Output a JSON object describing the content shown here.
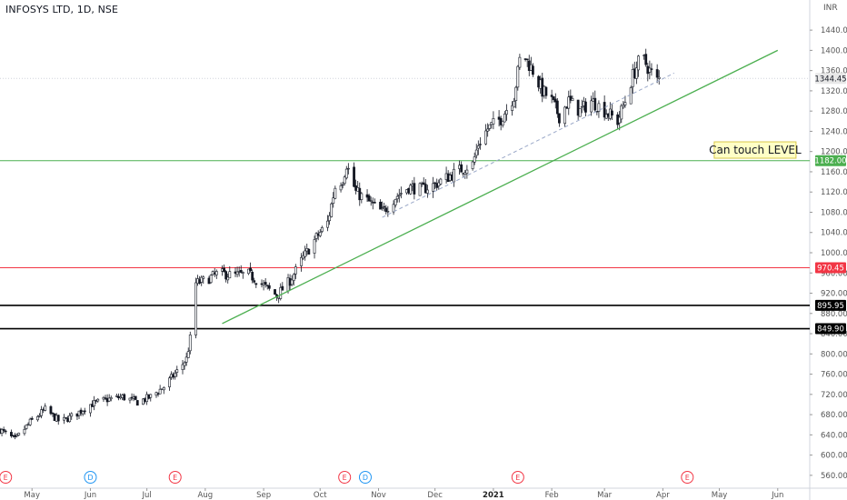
{
  "header": {
    "symbol_title": "INFOSYS LTD, 1D, NSE",
    "currency": "INR"
  },
  "chart_data": {
    "type": "candlestick",
    "title": "INFOSYS LTD, 1D, NSE",
    "ylim": [
      540,
      1460
    ],
    "y_ticks": [
      560,
      600,
      640,
      680,
      720,
      760,
      800,
      840,
      880,
      920,
      960,
      1000,
      1040,
      1080,
      1120,
      1160,
      1200,
      1240,
      1280,
      1320,
      1360,
      1400,
      1440
    ],
    "y_tick_labels": [
      "560.00",
      "600.00",
      "640.00",
      "680.00",
      "720.00",
      "760.00",
      "800.00",
      "840.00",
      "880.00",
      "920.00",
      "960.00",
      "1000.00",
      "1040.00",
      "1080.00",
      "1120.00",
      "1160.00",
      "1200.00",
      "1240.00",
      "1280.00",
      "1320.00",
      "1360.00",
      "1400.00",
      "1440.00"
    ],
    "x_range": [
      "2020-04-14",
      "2021-06-18"
    ],
    "x_ticks": [
      {
        "date": "2020-05-01",
        "label": "May",
        "year": false
      },
      {
        "date": "2020-06-01",
        "label": "Jun",
        "year": false
      },
      {
        "date": "2020-07-01",
        "label": "Jul",
        "year": false
      },
      {
        "date": "2020-08-01",
        "label": "Aug",
        "year": false
      },
      {
        "date": "2020-09-01",
        "label": "Sep",
        "year": false
      },
      {
        "date": "2020-10-01",
        "label": "Oct",
        "year": false
      },
      {
        "date": "2020-11-01",
        "label": "Nov",
        "year": false
      },
      {
        "date": "2020-12-01",
        "label": "Dec",
        "year": false
      },
      {
        "date": "2021-01-01",
        "label": "2021",
        "year": true
      },
      {
        "date": "2021-02-01",
        "label": "Feb",
        "year": false
      },
      {
        "date": "2021-03-01",
        "label": "Mar",
        "year": false
      },
      {
        "date": "2021-04-01",
        "label": "Apr",
        "year": false
      },
      {
        "date": "2021-05-01",
        "label": "May",
        "year": false
      },
      {
        "date": "2021-06-01",
        "label": "Jun",
        "year": false
      }
    ],
    "price_path": [
      [
        "2020-04-14",
        650
      ],
      [
        "2020-04-22",
        630
      ],
      [
        "2020-04-30",
        665
      ],
      [
        "2020-05-08",
        690
      ],
      [
        "2020-05-16",
        665
      ],
      [
        "2020-05-24",
        680
      ],
      [
        "2020-06-01",
        700
      ],
      [
        "2020-06-10",
        710
      ],
      [
        "2020-06-18",
        715
      ],
      [
        "2020-06-26",
        705
      ],
      [
        "2020-07-03",
        715
      ],
      [
        "2020-07-10",
        735
      ],
      [
        "2020-07-17",
        765
      ],
      [
        "2020-07-22",
        790
      ],
      [
        "2020-07-24",
        830
      ],
      [
        "2020-07-27",
        940
      ],
      [
        "2020-08-01",
        945
      ],
      [
        "2020-08-08",
        960
      ],
      [
        "2020-08-16",
        955
      ],
      [
        "2020-08-24",
        958
      ],
      [
        "2020-09-01",
        935
      ],
      [
        "2020-09-08",
        915
      ],
      [
        "2020-09-15",
        945
      ],
      [
        "2020-09-22",
        990
      ],
      [
        "2020-09-29",
        1030
      ],
      [
        "2020-10-05",
        1060
      ],
      [
        "2020-10-09",
        1130
      ],
      [
        "2020-10-13",
        1145
      ],
      [
        "2020-10-15",
        1175
      ],
      [
        "2020-10-20",
        1120
      ],
      [
        "2020-10-27",
        1100
      ],
      [
        "2020-11-03",
        1080
      ],
      [
        "2020-11-10",
        1110
      ],
      [
        "2020-11-17",
        1130
      ],
      [
        "2020-11-24",
        1125
      ],
      [
        "2020-12-01",
        1135
      ],
      [
        "2020-12-08",
        1150
      ],
      [
        "2020-12-15",
        1165
      ],
      [
        "2020-12-21",
        1175
      ],
      [
        "2020-12-24",
        1215
      ],
      [
        "2020-12-29",
        1245
      ],
      [
        "2021-01-05",
        1265
      ],
      [
        "2021-01-12",
        1310
      ],
      [
        "2021-01-15",
        1380
      ],
      [
        "2021-01-18",
        1385
      ],
      [
        "2021-01-22",
        1360
      ],
      [
        "2021-01-27",
        1320
      ],
      [
        "2021-02-01",
        1300
      ],
      [
        "2021-02-05",
        1270
      ],
      [
        "2021-02-10",
        1300
      ],
      [
        "2021-02-16",
        1280
      ],
      [
        "2021-02-22",
        1300
      ],
      [
        "2021-02-26",
        1290
      ],
      [
        "2021-03-03",
        1275
      ],
      [
        "2021-03-08",
        1260
      ],
      [
        "2021-03-12",
        1300
      ],
      [
        "2021-03-16",
        1350
      ],
      [
        "2021-03-19",
        1375
      ],
      [
        "2021-03-22",
        1380
      ],
      [
        "2021-03-25",
        1360
      ],
      [
        "2021-03-29",
        1340
      ],
      [
        "2021-03-30",
        1344
      ]
    ],
    "horizontal_levels": [
      {
        "price": 1182.0,
        "label": "1182.00",
        "color": "#4caf50",
        "tag_bg": "#4caf50",
        "tag_fg": "#ffffff",
        "width": 1
      },
      {
        "price": 970.45,
        "label": "970.45",
        "color": "#f23645",
        "tag_bg": "#f23645",
        "tag_fg": "#ffffff",
        "width": 1
      },
      {
        "price": 895.95,
        "label": "895.95",
        "color": "#000000",
        "tag_bg": "#000000",
        "tag_fg": "#ffffff",
        "width": 1.6
      },
      {
        "price": 849.9,
        "label": "849.90",
        "color": "#000000",
        "tag_bg": "#000000",
        "tag_fg": "#ffffff",
        "width": 1.6
      }
    ],
    "last_price": {
      "price": 1344.45,
      "label": "1344.45",
      "tag_bg": "#e8e8e8",
      "tag_fg": "#131722"
    },
    "trendline": {
      "from": [
        "2020-08-10",
        860
      ],
      "to": [
        "2021-06-01",
        1400
      ],
      "color": "#4caf50"
    },
    "dashed_line": {
      "from": [
        "2020-11-03",
        1070
      ],
      "to": [
        "2021-04-07",
        1355
      ],
      "color": "#9aa8c8"
    },
    "annotation": {
      "text": "Can touch LEVEL",
      "date": "2021-05-20",
      "price": 1203,
      "bg": "#ffffc6",
      "border": "#d9c84a"
    },
    "events": [
      {
        "date": "2020-04-17",
        "letter": "E",
        "color": "#f23645"
      },
      {
        "date": "2020-06-01",
        "letter": "D",
        "color": "#2196f3"
      },
      {
        "date": "2020-07-16",
        "letter": "E",
        "color": "#f23645"
      },
      {
        "date": "2020-10-14",
        "letter": "E",
        "color": "#f23645"
      },
      {
        "date": "2020-10-25",
        "letter": "D",
        "color": "#2196f3"
      },
      {
        "date": "2021-01-14",
        "letter": "E",
        "color": "#f23645"
      },
      {
        "date": "2021-04-14",
        "letter": "E",
        "color": "#f23645"
      }
    ],
    "colors": {
      "candle": "#131722",
      "up_fill": "#ffffff",
      "down_fill": "#131722",
      "axis": "#d1d4dc"
    }
  }
}
